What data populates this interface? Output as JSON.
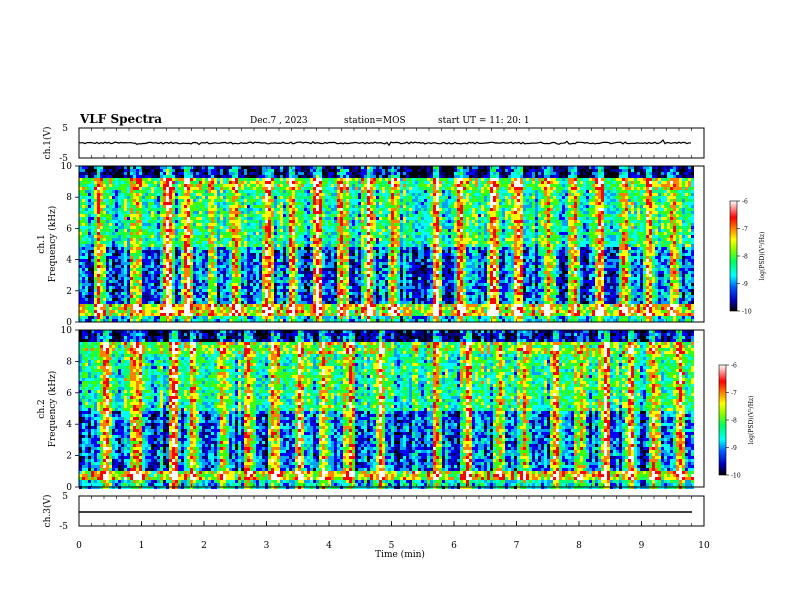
{
  "header": {
    "title": "VLF Spectra",
    "date": "Dec.7 , 2023",
    "station": "station=MOS",
    "start_ut": "start UT = 11: 20: 1"
  },
  "colors": {
    "spectrogram_scale": [
      "#000000",
      "#000080",
      "#0000ff",
      "#00a0ff",
      "#00ffff",
      "#00ff80",
      "#40ff00",
      "#ffff00",
      "#ff8000",
      "#ff0000",
      "#ffffff"
    ]
  },
  "chart_data": [
    {
      "type": "line",
      "panel": "channel-1-waveform",
      "ylabel": "ch.1(V)",
      "ylim": [
        -5,
        5
      ],
      "yticks": [
        "5",
        "-5"
      ],
      "baseline_value": 0
    },
    {
      "type": "heatmap",
      "panel": "channel-1-spectrogram",
      "ylabel_1": "ch.1",
      "ylabel_2": "Frequency (kHz)",
      "ylim": [
        0,
        10
      ],
      "yticks": [
        "0",
        "2",
        "4",
        "6",
        "8",
        "10"
      ],
      "xlim": [
        0,
        10
      ],
      "colorbar": {
        "label": "log(PSD)(V²/Hz)",
        "range": [
          -10,
          -6
        ],
        "ticks": [
          "-6",
          "-7",
          "-8",
          "-9",
          "-10"
        ]
      },
      "intense_bursts_min": [
        0.3,
        0.9,
        1.4,
        1.7,
        2.1,
        2.5,
        3.0,
        3.4,
        3.8,
        4.2,
        4.6,
        5.0,
        5.7,
        6.1,
        6.6,
        7.0,
        7.5,
        7.9,
        8.3,
        8.7,
        9.1,
        9.5
      ]
    },
    {
      "type": "heatmap",
      "panel": "channel-2-spectrogram",
      "ylabel_1": "ch.2",
      "ylabel_2": "Frequency (kHz)",
      "ylim": [
        0,
        10
      ],
      "yticks": [
        "0",
        "2",
        "4",
        "6",
        "8",
        "10"
      ],
      "xlim": [
        0,
        10
      ],
      "colorbar": {
        "label": "log(PSD)(V²/Hz)",
        "range": [
          -10,
          -6
        ],
        "ticks": [
          "-6",
          "-7",
          "-8",
          "-9",
          "-10"
        ]
      },
      "intense_bursts_min": [
        0.4,
        0.9,
        1.5,
        1.8,
        2.3,
        2.7,
        3.1,
        3.5,
        3.9,
        4.3,
        4.8,
        5.7,
        6.2,
        6.7,
        7.1,
        7.6,
        8.0,
        8.4,
        8.8,
        9.2,
        9.6
      ]
    },
    {
      "type": "line",
      "panel": "channel-3-waveform",
      "ylabel": "ch.3(V)",
      "ylim": [
        -5,
        5
      ],
      "yticks": [
        "5",
        "-5"
      ],
      "baseline_value": 0
    }
  ],
  "x_axis": {
    "label": "Time (min)",
    "range": [
      0,
      10
    ],
    "ticks": [
      "0",
      "1",
      "2",
      "3",
      "4",
      "5",
      "6",
      "7",
      "8",
      "9",
      "10"
    ]
  }
}
